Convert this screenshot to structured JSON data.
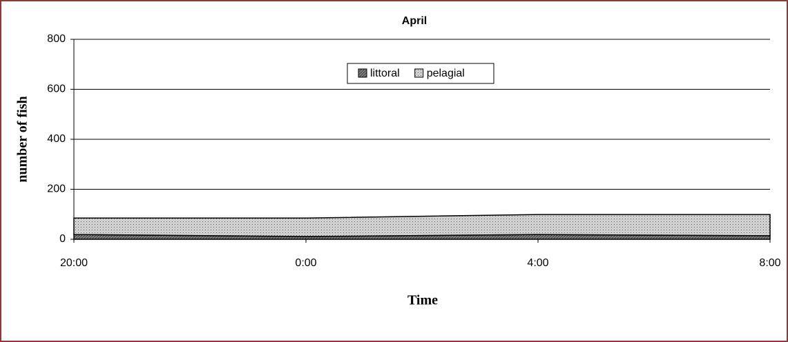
{
  "chart_data": {
    "type": "area",
    "stacked": true,
    "title": "April",
    "x_label": "Time",
    "y_label": "number of fish",
    "categories": [
      "20:00",
      "0:00",
      "4:00",
      "8:00"
    ],
    "series": [
      {
        "name": "littoral",
        "color": "#7f7f7f",
        "values": [
          19,
          11,
          19,
          14
        ]
      },
      {
        "name": "pelagial",
        "color": "#cfcfcf",
        "values": [
          66,
          74,
          80,
          85
        ]
      }
    ],
    "ylim": [
      0,
      800
    ],
    "yticks": [
      0,
      200,
      400,
      600,
      800
    ],
    "grid": true,
    "legend": "top"
  }
}
